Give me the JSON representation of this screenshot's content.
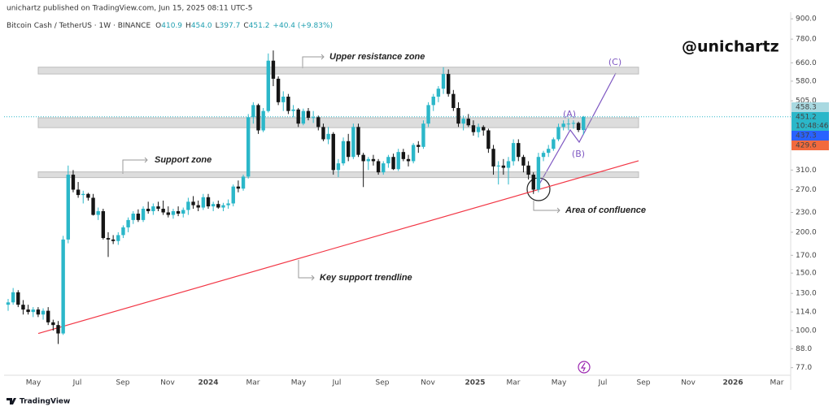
{
  "header": {
    "publisher": "unichartz published on TradingView.com, Jun 15, 2025 08:11 UTC-5",
    "symbol": "Bitcoin Cash / TetherUS · 1W · BINANCE",
    "ohlc": [
      {
        "key": "O",
        "value": "410.9"
      },
      {
        "key": "H",
        "value": "454.0"
      },
      {
        "key": "L",
        "value": "397.7"
      },
      {
        "key": "C",
        "value": "451.2"
      }
    ],
    "change": "+40.4 (+9.83%)"
  },
  "watermark": "@unichartz",
  "footer": "TradingView",
  "chart_data": {
    "type": "candlestick",
    "log_scale": true,
    "grid": false,
    "up_color": "#2bb7c9",
    "down_color": "#151515",
    "ylim": [
      73,
      943
    ],
    "yticks": [
      {
        "value": 900,
        "label": "900.0"
      },
      {
        "value": 780,
        "label": "780.0"
      },
      {
        "value": 660,
        "label": "660.0"
      },
      {
        "value": 580,
        "label": "580.0"
      },
      {
        "value": 505,
        "label": "505.0"
      },
      {
        "value": 310,
        "label": "310.0"
      },
      {
        "value": 270,
        "label": "270.0"
      },
      {
        "value": 230,
        "label": "230.0"
      },
      {
        "value": 200,
        "label": "200.0"
      },
      {
        "value": 170,
        "label": "170.0"
      },
      {
        "value": 150,
        "label": "150.0"
      },
      {
        "value": 130,
        "label": "130.0"
      },
      {
        "value": 114,
        "label": "114.0"
      },
      {
        "value": 100,
        "label": "100.0"
      },
      {
        "value": 88,
        "label": "88.0"
      },
      {
        "value": 77,
        "label": "77.0"
      }
    ],
    "xtick_labels": [
      "May",
      "Jul",
      "Sep",
      "Nov",
      "2024",
      "Mar",
      "May",
      "Jul",
      "Sep",
      "Nov",
      "2025",
      "Mar",
      "May",
      "Jul",
      "Sep",
      "Nov",
      "2026",
      "Mar"
    ],
    "candles": [
      [
        120,
        125,
        115,
        122
      ],
      [
        122,
        135,
        120,
        131
      ],
      [
        131,
        133,
        118,
        120
      ],
      [
        120,
        124,
        112,
        116
      ],
      [
        116,
        120,
        112,
        114
      ],
      [
        114,
        118,
        110,
        116
      ],
      [
        116,
        118,
        110,
        112
      ],
      [
        112,
        117,
        108,
        115
      ],
      [
        115,
        118,
        104,
        106
      ],
      [
        106,
        108,
        100,
        104
      ],
      [
        104,
        107,
        91,
        98
      ],
      [
        98,
        195,
        97,
        190
      ],
      [
        190,
        320,
        185,
        300
      ],
      [
        300,
        310,
        265,
        270
      ],
      [
        270,
        285,
        255,
        260
      ],
      [
        260,
        268,
        245,
        262
      ],
      [
        262,
        264,
        250,
        255
      ],
      [
        255,
        262,
        225,
        226
      ],
      [
        226,
        238,
        218,
        232
      ],
      [
        232,
        236,
        190,
        192
      ],
      [
        192,
        200,
        168,
        190
      ],
      [
        190,
        196,
        184,
        188
      ],
      [
        188,
        200,
        183,
        196
      ],
      [
        196,
        210,
        192,
        207
      ],
      [
        207,
        222,
        200,
        218
      ],
      [
        218,
        232,
        212,
        228
      ],
      [
        228,
        235,
        215,
        218
      ],
      [
        218,
        240,
        215,
        236
      ],
      [
        236,
        248,
        228,
        232
      ],
      [
        232,
        245,
        226,
        240
      ],
      [
        240,
        248,
        232,
        236
      ],
      [
        236,
        250,
        226,
        230
      ],
      [
        230,
        240,
        222,
        226
      ],
      [
        226,
        236,
        220,
        232
      ],
      [
        232,
        240,
        224,
        228
      ],
      [
        228,
        238,
        222,
        234
      ],
      [
        234,
        255,
        226,
        248
      ],
      [
        248,
        258,
        236,
        242
      ],
      [
        242,
        250,
        232,
        238
      ],
      [
        238,
        262,
        234,
        256
      ],
      [
        256,
        262,
        236,
        240
      ],
      [
        240,
        248,
        232,
        244
      ],
      [
        244,
        250,
        236,
        238
      ],
      [
        238,
        246,
        232,
        242
      ],
      [
        242,
        252,
        236,
        245
      ],
      [
        245,
        280,
        240,
        276
      ],
      [
        276,
        288,
        265,
        272
      ],
      [
        272,
        300,
        268,
        296
      ],
      [
        296,
        460,
        292,
        450
      ],
      [
        450,
        500,
        430,
        490
      ],
      [
        490,
        495,
        400,
        410
      ],
      [
        410,
        480,
        405,
        470
      ],
      [
        470,
        705,
        465,
        670
      ],
      [
        670,
        720,
        560,
        590
      ],
      [
        590,
        600,
        490,
        500
      ],
      [
        500,
        540,
        470,
        520
      ],
      [
        520,
        530,
        460,
        470
      ],
      [
        470,
        490,
        450,
        475
      ],
      [
        475,
        480,
        420,
        430
      ],
      [
        430,
        478,
        425,
        470
      ],
      [
        470,
        480,
        440,
        448
      ],
      [
        448,
        470,
        432,
        450
      ],
      [
        450,
        455,
        410,
        420
      ],
      [
        420,
        430,
        380,
        385
      ],
      [
        385,
        420,
        372,
        400
      ],
      [
        400,
        405,
        300,
        310
      ],
      [
        310,
        335,
        295,
        325
      ],
      [
        325,
        390,
        320,
        380
      ],
      [
        380,
        400,
        330,
        340
      ],
      [
        340,
        430,
        335,
        420
      ],
      [
        420,
        430,
        340,
        345
      ],
      [
        345,
        350,
        275,
        330
      ],
      [
        330,
        340,
        310,
        335
      ],
      [
        335,
        345,
        320,
        330
      ],
      [
        330,
        335,
        300,
        305
      ],
      [
        305,
        330,
        300,
        325
      ],
      [
        325,
        345,
        315,
        340
      ],
      [
        340,
        348,
        310,
        312
      ],
      [
        312,
        360,
        308,
        352
      ],
      [
        352,
        360,
        330,
        335
      ],
      [
        335,
        345,
        318,
        330
      ],
      [
        330,
        375,
        325,
        370
      ],
      [
        370,
        380,
        350,
        365
      ],
      [
        365,
        440,
        360,
        430
      ],
      [
        430,
        500,
        420,
        490
      ],
      [
        490,
        530,
        470,
        520
      ],
      [
        520,
        560,
        500,
        550
      ],
      [
        550,
        640,
        530,
        610
      ],
      [
        610,
        630,
        520,
        530
      ],
      [
        530,
        545,
        470,
        480
      ],
      [
        480,
        500,
        420,
        430
      ],
      [
        430,
        455,
        410,
        445
      ],
      [
        445,
        460,
        420,
        425
      ],
      [
        425,
        440,
        395,
        405
      ],
      [
        405,
        430,
        390,
        420
      ],
      [
        420,
        425,
        395,
        410
      ],
      [
        410,
        415,
        350,
        360
      ],
      [
        360,
        370,
        300,
        318
      ],
      [
        318,
        330,
        280,
        320
      ],
      [
        320,
        335,
        300,
        315
      ],
      [
        315,
        340,
        280,
        330
      ],
      [
        330,
        385,
        320,
        375
      ],
      [
        375,
        385,
        330,
        340
      ],
      [
        340,
        345,
        305,
        320
      ],
      [
        320,
        330,
        290,
        300
      ],
      [
        300,
        305,
        262,
        270
      ],
      [
        270,
        350,
        265,
        340
      ],
      [
        340,
        355,
        330,
        350
      ],
      [
        350,
        370,
        340,
        360
      ],
      [
        360,
        390,
        355,
        385
      ],
      [
        385,
        430,
        380,
        420
      ],
      [
        420,
        440,
        410,
        430
      ],
      [
        430,
        445,
        410,
        430
      ],
      [
        430,
        440,
        415,
        432
      ],
      [
        432,
        436,
        405,
        411
      ],
      [
        410.9,
        454,
        397.7,
        451.2
      ]
    ],
    "zones": [
      {
        "low": 610,
        "high": 640,
        "label": "Upper resistance zone"
      },
      {
        "low": 418,
        "high": 448
      },
      {
        "low": 294,
        "high": 306,
        "label": "Support zone"
      }
    ],
    "trendline": {
      "values": [
        98,
        331
      ],
      "color": "#f23645",
      "label": "Key support trendline"
    },
    "confluence_label": "Area of confluence",
    "wave_labels": [
      "(A)",
      "(B)",
      "(C)"
    ],
    "last_price": 451.2,
    "price_labels": [
      {
        "value": 458.3,
        "color": "#a9d9e1"
      },
      {
        "value": 451.2,
        "color": "#2bb7c9",
        "countdown": "10:48:46"
      },
      {
        "value": 437.3,
        "color": "#2962ff"
      },
      {
        "value": 429.6,
        "color": "#f26a3d"
      }
    ]
  }
}
